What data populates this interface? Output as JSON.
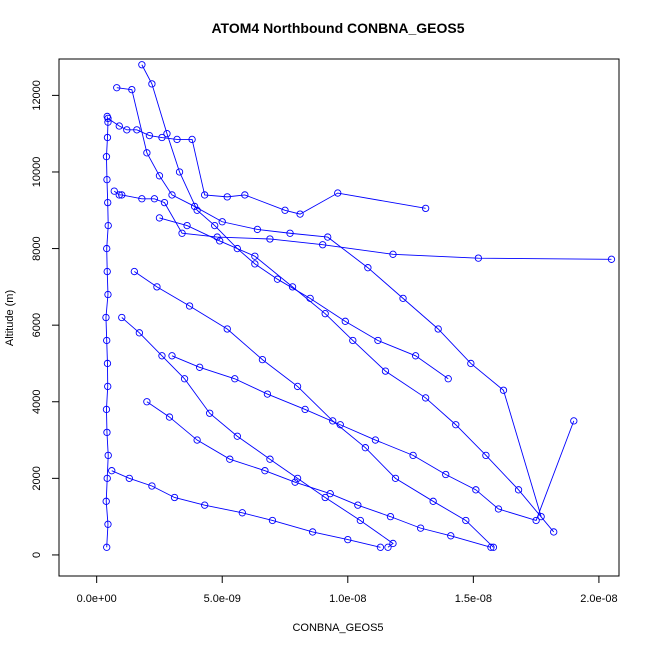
{
  "chart_data": {
    "type": "scatter",
    "title": "ATOM4 Northbound CONBNA_GEOS5",
    "xlabel": "CONBNA_GEOS5",
    "ylabel": "Altitude (m)",
    "xlim": [
      -1.5e-09,
      2.08e-08
    ],
    "ylim": [
      -550,
      12950
    ],
    "x_ticks": [
      0,
      5e-09,
      1e-08,
      1.5e-08,
      2e-08
    ],
    "x_tick_labels": [
      "0.0e+00",
      "5.0e-09",
      "1.0e-08",
      "1.5e-08",
      "2.0e-08"
    ],
    "y_ticks": [
      0,
      2000,
      4000,
      6000,
      8000,
      10000,
      12000
    ],
    "y_tick_labels": [
      "0",
      "2000",
      "4000",
      "6000",
      "8000",
      "10000",
      "12000"
    ],
    "grid": false,
    "marker": "open-circle",
    "line_connected": true,
    "color": "#0000ff",
    "series": [
      {
        "x": [
          4e-10,
          4.5e-10,
          3.8e-10,
          4.2e-10,
          4.6e-10,
          4.1e-10,
          3.9e-10,
          4.4e-10,
          4.3e-10,
          4e-10,
          3.7e-10,
          4.5e-10,
          4.2e-10,
          4e-10,
          4.6e-10,
          4.4e-10,
          4.1e-10,
          3.9e-10,
          4.3e-10,
          4.5e-10,
          4.2e-10
        ],
        "y": [
          200,
          800,
          1400,
          2000,
          2600,
          3200,
          3800,
          4400,
          5000,
          5600,
          6200,
          6800,
          7400,
          8000,
          8600,
          9200,
          9800,
          10400,
          10900,
          11300,
          11450
        ]
      },
      {
        "x": [
          4.5e-10,
          9e-10,
          1.2e-09,
          1.6e-09,
          2.1e-09,
          2.6e-09,
          3.2e-09,
          3.8e-09,
          4.3e-09,
          5.2e-09,
          5.9e-09,
          7.5e-09,
          8.1e-09,
          9.6e-09,
          1.31e-08
        ],
        "y": [
          11400,
          11200,
          11100,
          11100,
          10950,
          10900,
          10850,
          10850,
          9400,
          9350,
          9400,
          9000,
          8900,
          9450,
          9050
        ]
      },
      {
        "x": [
          7e-10,
          9e-10,
          1e-09,
          1.8e-09,
          2.3e-09,
          2.7e-09,
          3.4e-09,
          4.8e-09,
          6.9e-09,
          9e-09,
          1.18e-08,
          1.52e-08,
          2.05e-08
        ],
        "y": [
          9500,
          9400,
          9400,
          9300,
          9300,
          9200,
          8400,
          8300,
          8250,
          8100,
          7850,
          7750,
          7720
        ]
      },
      {
        "x": [
          2.5e-09,
          3.6e-09,
          4.9e-09,
          6.3e-09,
          7.8e-09,
          9.1e-09,
          1.02e-08,
          1.15e-08,
          1.31e-08,
          1.43e-08,
          1.55e-08,
          1.68e-08,
          1.82e-08
        ],
        "y": [
          8800,
          8600,
          8200,
          7800,
          7000,
          6300,
          5600,
          4800,
          4100,
          3400,
          2600,
          1700,
          600
        ]
      },
      {
        "x": [
          1.5e-09,
          2.4e-09,
          3.7e-09,
          5.2e-09,
          6.6e-09,
          8e-09,
          9.4e-09,
          1.07e-08,
          1.19e-08,
          1.34e-08,
          1.47e-08,
          1.58e-08
        ],
        "y": [
          7400,
          7000,
          6500,
          5900,
          5100,
          4400,
          3500,
          2800,
          2000,
          1400,
          900,
          200
        ]
      },
      {
        "x": [
          3e-09,
          4.1e-09,
          5.5e-09,
          6.8e-09,
          8.3e-09,
          9.7e-09,
          1.11e-08,
          1.26e-08,
          1.39e-08,
          1.51e-08,
          1.6e-08,
          1.75e-08,
          1.9e-08
        ],
        "y": [
          5200,
          4900,
          4600,
          4200,
          3800,
          3400,
          3000,
          2600,
          2100,
          1700,
          1200,
          900,
          3500
        ]
      },
      {
        "x": [
          1e-09,
          1.7e-09,
          2.6e-09,
          3.5e-09,
          4.5e-09,
          5.6e-09,
          6.9e-09,
          8e-09,
          9.1e-09,
          1.05e-08,
          1.18e-08,
          1.16e-08
        ],
        "y": [
          6200,
          5800,
          5200,
          4600,
          3700,
          3100,
          2500,
          2000,
          1500,
          900,
          300,
          200
        ]
      },
      {
        "x": [
          2e-09,
          2.9e-09,
          4e-09,
          5.3e-09,
          6.7e-09,
          7.9e-09,
          9.3e-09,
          1.04e-08,
          1.17e-08,
          1.29e-08,
          1.41e-08,
          1.57e-08
        ],
        "y": [
          4000,
          3600,
          3000,
          2500,
          2200,
          1900,
          1600,
          1300,
          1000,
          700,
          500,
          200
        ]
      },
      {
        "x": [
          6e-10,
          1.3e-09,
          2.2e-09,
          3.1e-09,
          4.3e-09,
          5.8e-09,
          7e-09,
          8.6e-09,
          1e-08,
          1.13e-08
        ],
        "y": [
          2200,
          2000,
          1800,
          1500,
          1300,
          1100,
          900,
          600,
          400,
          200
        ]
      },
      {
        "x": [
          8e-10,
          1.4e-09,
          2e-09,
          2.5e-09,
          3e-09,
          3.9e-09,
          5e-09,
          6.4e-09,
          7.7e-09,
          9.2e-09,
          1.08e-08,
          1.22e-08,
          1.36e-08,
          1.49e-08,
          1.62e-08,
          1.77e-08
        ],
        "y": [
          12200,
          12150,
          10500,
          9900,
          9400,
          9100,
          8700,
          8500,
          8400,
          8300,
          7500,
          6700,
          5900,
          5000,
          4300,
          1000
        ]
      },
      {
        "x": [
          1.8e-09,
          2.2e-09,
          2.8e-09,
          3.3e-09,
          4e-09,
          4.7e-09,
          5.6e-09,
          6.3e-09,
          7.2e-09,
          8.5e-09,
          9.9e-09,
          1.12e-08,
          1.27e-08,
          1.4e-08
        ],
        "y": [
          12800,
          12300,
          11000,
          10000,
          9000,
          8600,
          8000,
          7600,
          7200,
          6700,
          6100,
          5600,
          5200,
          4600
        ]
      }
    ]
  }
}
